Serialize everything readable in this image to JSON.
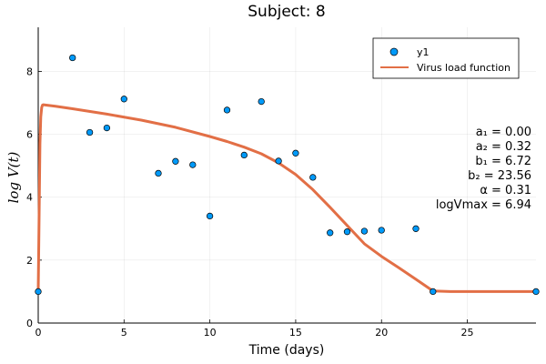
{
  "chart_data": {
    "type": "scatter",
    "title": "Subject: 8",
    "xlabel": "Time (days)",
    "ylabel": "log V(t)",
    "xlim": [
      0,
      29
    ],
    "ylim": [
      0,
      9.4
    ],
    "xticks": [
      0,
      5,
      10,
      15,
      20,
      25
    ],
    "yticks": [
      0,
      2,
      4,
      6,
      8
    ],
    "grid": true,
    "legend_position": "top-right",
    "series": [
      {
        "name": "y1",
        "kind": "scatter",
        "color": "#009AF9",
        "x": [
          0,
          2,
          3,
          4,
          5,
          7,
          8,
          9,
          10,
          11,
          12,
          13,
          14,
          15,
          16,
          17,
          18,
          19,
          20,
          22,
          23,
          29
        ],
        "y": [
          1.0,
          8.43,
          6.06,
          6.2,
          7.12,
          4.76,
          5.14,
          5.03,
          3.4,
          6.77,
          5.34,
          7.04,
          5.15,
          5.4,
          4.63,
          2.87,
          2.9,
          2.92,
          2.95,
          3.0,
          1.0,
          1.0
        ]
      },
      {
        "name": "Virus load function",
        "kind": "line",
        "color": "#E26F46",
        "x": [
          0,
          0.05,
          0.1,
          0.15,
          0.2,
          0.25,
          0.3,
          1,
          2,
          4,
          6,
          8,
          10,
          11,
          12,
          13,
          14,
          15,
          16,
          17,
          18,
          19,
          20,
          21,
          22,
          23,
          24,
          25,
          26,
          27,
          28,
          29
        ],
        "y": [
          1.0,
          3.2,
          5.7,
          6.55,
          6.85,
          6.93,
          6.94,
          6.89,
          6.81,
          6.64,
          6.45,
          6.22,
          5.93,
          5.77,
          5.59,
          5.38,
          5.09,
          4.72,
          4.24,
          3.68,
          3.1,
          2.52,
          2.12,
          1.76,
          1.39,
          1.02,
          1.0,
          1.0,
          1.0,
          1.0,
          1.0,
          1.0
        ]
      }
    ],
    "annotations": [
      "a₁ = 0.00",
      "a₂ = 0.32",
      "b₁ = 6.72",
      "b₂ = 23.56",
      "α = 0.31",
      "logVmax = 6.94"
    ]
  }
}
